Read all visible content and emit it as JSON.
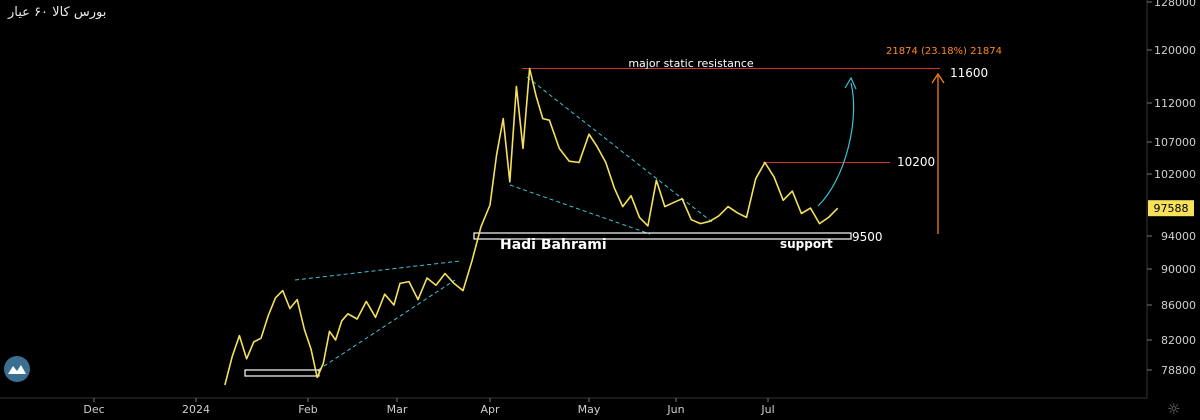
{
  "header": {
    "symbol_title": "بورس کالا  ۶۰  عیار"
  },
  "icons": {
    "logo": "wave-logo-icon",
    "settings": "gear-icon"
  },
  "colors": {
    "background": "#000000",
    "price_line": "#f5e15a",
    "channel": "#3cc4d8",
    "resistance": "#d32f2f",
    "measure": "#ff8a1e",
    "arrow": "#3cc4d8",
    "support_box": "#ffffff",
    "price_tag_bg": "#f5e15a"
  },
  "chart_data": {
    "type": "line",
    "title": "",
    "xlabel": "",
    "ylabel": "",
    "x_ticks": [
      "Dec",
      "2024",
      "Feb",
      "Mar",
      "Apr",
      "May",
      "Jun",
      "Jul"
    ],
    "y_ticks": [
      128000,
      120000,
      112000,
      107000,
      102000,
      94000,
      90000,
      86000,
      82000,
      78800
    ],
    "y_tick_labels": [
      "128000",
      "120000",
      "112000",
      "107000",
      "102000",
      "94000",
      "90000",
      "86000",
      "82000",
      "78800"
    ],
    "ylim": [
      76000,
      129000
    ],
    "current_price": 97588,
    "current_price_label": "97588",
    "series": [
      {
        "x": [
          "2024-01-09",
          "2024-01-11",
          "2024-01-13",
          "2024-01-15",
          "2024-01-17",
          "2024-01-19",
          "2024-01-21",
          "2024-01-23",
          "2024-01-25",
          "2024-01-27",
          "2024-01-29",
          "2024-01-31",
          "2024-02-02",
          "2024-02-04",
          "2024-02-06",
          "2024-02-08",
          "2024-02-10",
          "2024-02-12",
          "2024-02-14",
          "2024-02-17",
          "2024-02-20",
          "2024-02-23",
          "2024-02-26",
          "2024-02-29",
          "2024-03-02",
          "2024-03-05",
          "2024-03-08",
          "2024-03-11",
          "2024-03-14",
          "2024-03-17",
          "2024-03-20",
          "2024-03-23",
          "2024-03-26",
          "2024-03-29",
          "2024-04-01",
          "2024-04-03",
          "2024-04-05",
          "2024-04-07",
          "2024-04-09",
          "2024-04-11",
          "2024-04-13",
          "2024-04-15",
          "2024-04-17",
          "2024-04-19",
          "2024-04-22",
          "2024-04-25",
          "2024-04-28",
          "2024-05-01",
          "2024-05-04",
          "2024-05-07",
          "2024-05-10",
          "2024-05-13",
          "2024-05-16",
          "2024-05-19",
          "2024-05-22",
          "2024-05-25",
          "2024-05-28",
          "2024-05-31",
          "2024-06-03",
          "2024-06-06",
          "2024-06-09",
          "2024-06-12",
          "2024-06-15",
          "2024-06-18",
          "2024-06-21",
          "2024-06-24",
          "2024-06-27",
          "2024-06-30",
          "2024-07-03",
          "2024-07-06",
          "2024-07-09",
          "2024-07-12",
          "2024-07-15",
          "2024-07-18",
          "2024-07-21",
          "2024-07-24"
        ],
        "y": [
          77200,
          80200,
          82500,
          80000,
          81800,
          82200,
          84800,
          86800,
          87600,
          85600,
          86600,
          83200,
          81000,
          78000,
          79500,
          83000,
          82000,
          84200,
          85000,
          84400,
          86400,
          84600,
          87200,
          86000,
          88400,
          88600,
          86600,
          89000,
          88200,
          89500,
          88400,
          87600,
          91000,
          95200,
          98000,
          105000,
          110000,
          101000,
          114500,
          106000,
          117200,
          113000,
          110000,
          109800,
          106000,
          104000,
          103800,
          108000,
          106200,
          103800,
          100200,
          97800,
          99200,
          96400,
          95300,
          101200,
          97800,
          98300,
          98800,
          96100,
          95600,
          95900,
          96600,
          97800,
          97000,
          96400,
          101400,
          103800,
          101600,
          98600,
          99800,
          96900,
          97600,
          95600,
          96400,
          97588
        ]
      }
    ],
    "annotations": {
      "resistance_label": "major static resistance",
      "resistance_price": 11600,
      "resistance_price_label": "11600",
      "mid_resistance_price": 10200,
      "mid_resistance_label": "10200",
      "support_price": 9500,
      "support_price_label": "9500",
      "support_label": "support",
      "author_label": "Hadi Bahrami",
      "measure_label": "21874 (23.18%) 21874"
    }
  }
}
